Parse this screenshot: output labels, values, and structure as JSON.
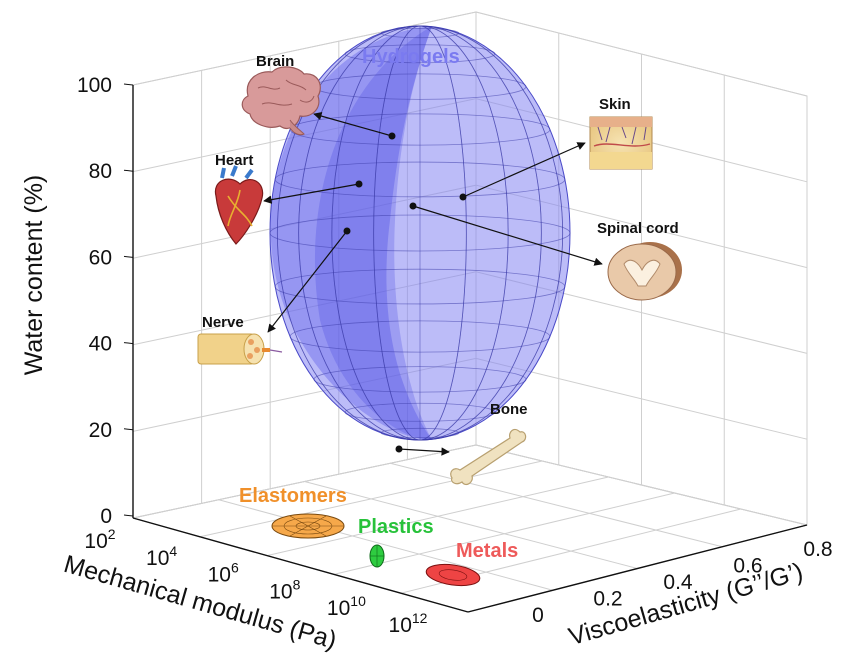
{
  "chart_data": {
    "type": "scatter3d",
    "axes": {
      "x": {
        "label": "Mechanical modulus (Pa)",
        "scale": "log",
        "ticks": [
          {
            "base": "10",
            "exp": "2"
          },
          {
            "base": "10",
            "exp": "4"
          },
          {
            "base": "10",
            "exp": "6"
          },
          {
            "base": "10",
            "exp": "8"
          },
          {
            "base": "10",
            "exp": "10"
          },
          {
            "base": "10",
            "exp": "12"
          }
        ]
      },
      "y": {
        "label": "Viscoelasticity (G’’/G’)",
        "ticks": [
          "0",
          "0.2",
          "0.4",
          "0.6",
          "0.8"
        ]
      },
      "z": {
        "label": "Water content (%)",
        "ticks": [
          "0",
          "20",
          "40",
          "60",
          "80",
          "100"
        ]
      },
      "grid": true
    },
    "material_classes": [
      {
        "name": "Hydrogels",
        "color": "#6666ee",
        "shape": "ellipsoid"
      },
      {
        "name": "Elastomers",
        "color": "#f39a3a",
        "shape": "disc"
      },
      {
        "name": "Plastics",
        "color": "#2ecc40",
        "shape": "disc"
      },
      {
        "name": "Metals",
        "color": "#ee5555",
        "shape": "disc"
      }
    ],
    "tissues": [
      {
        "name": "Brain",
        "icon": "brain-icon"
      },
      {
        "name": "Heart",
        "icon": "heart-icon"
      },
      {
        "name": "Skin",
        "icon": "skin-icon"
      },
      {
        "name": "Spinal cord",
        "icon": "spinal-cord-icon"
      },
      {
        "name": "Nerve",
        "icon": "nerve-icon"
      },
      {
        "name": "Bone",
        "icon": "bone-icon"
      }
    ]
  }
}
